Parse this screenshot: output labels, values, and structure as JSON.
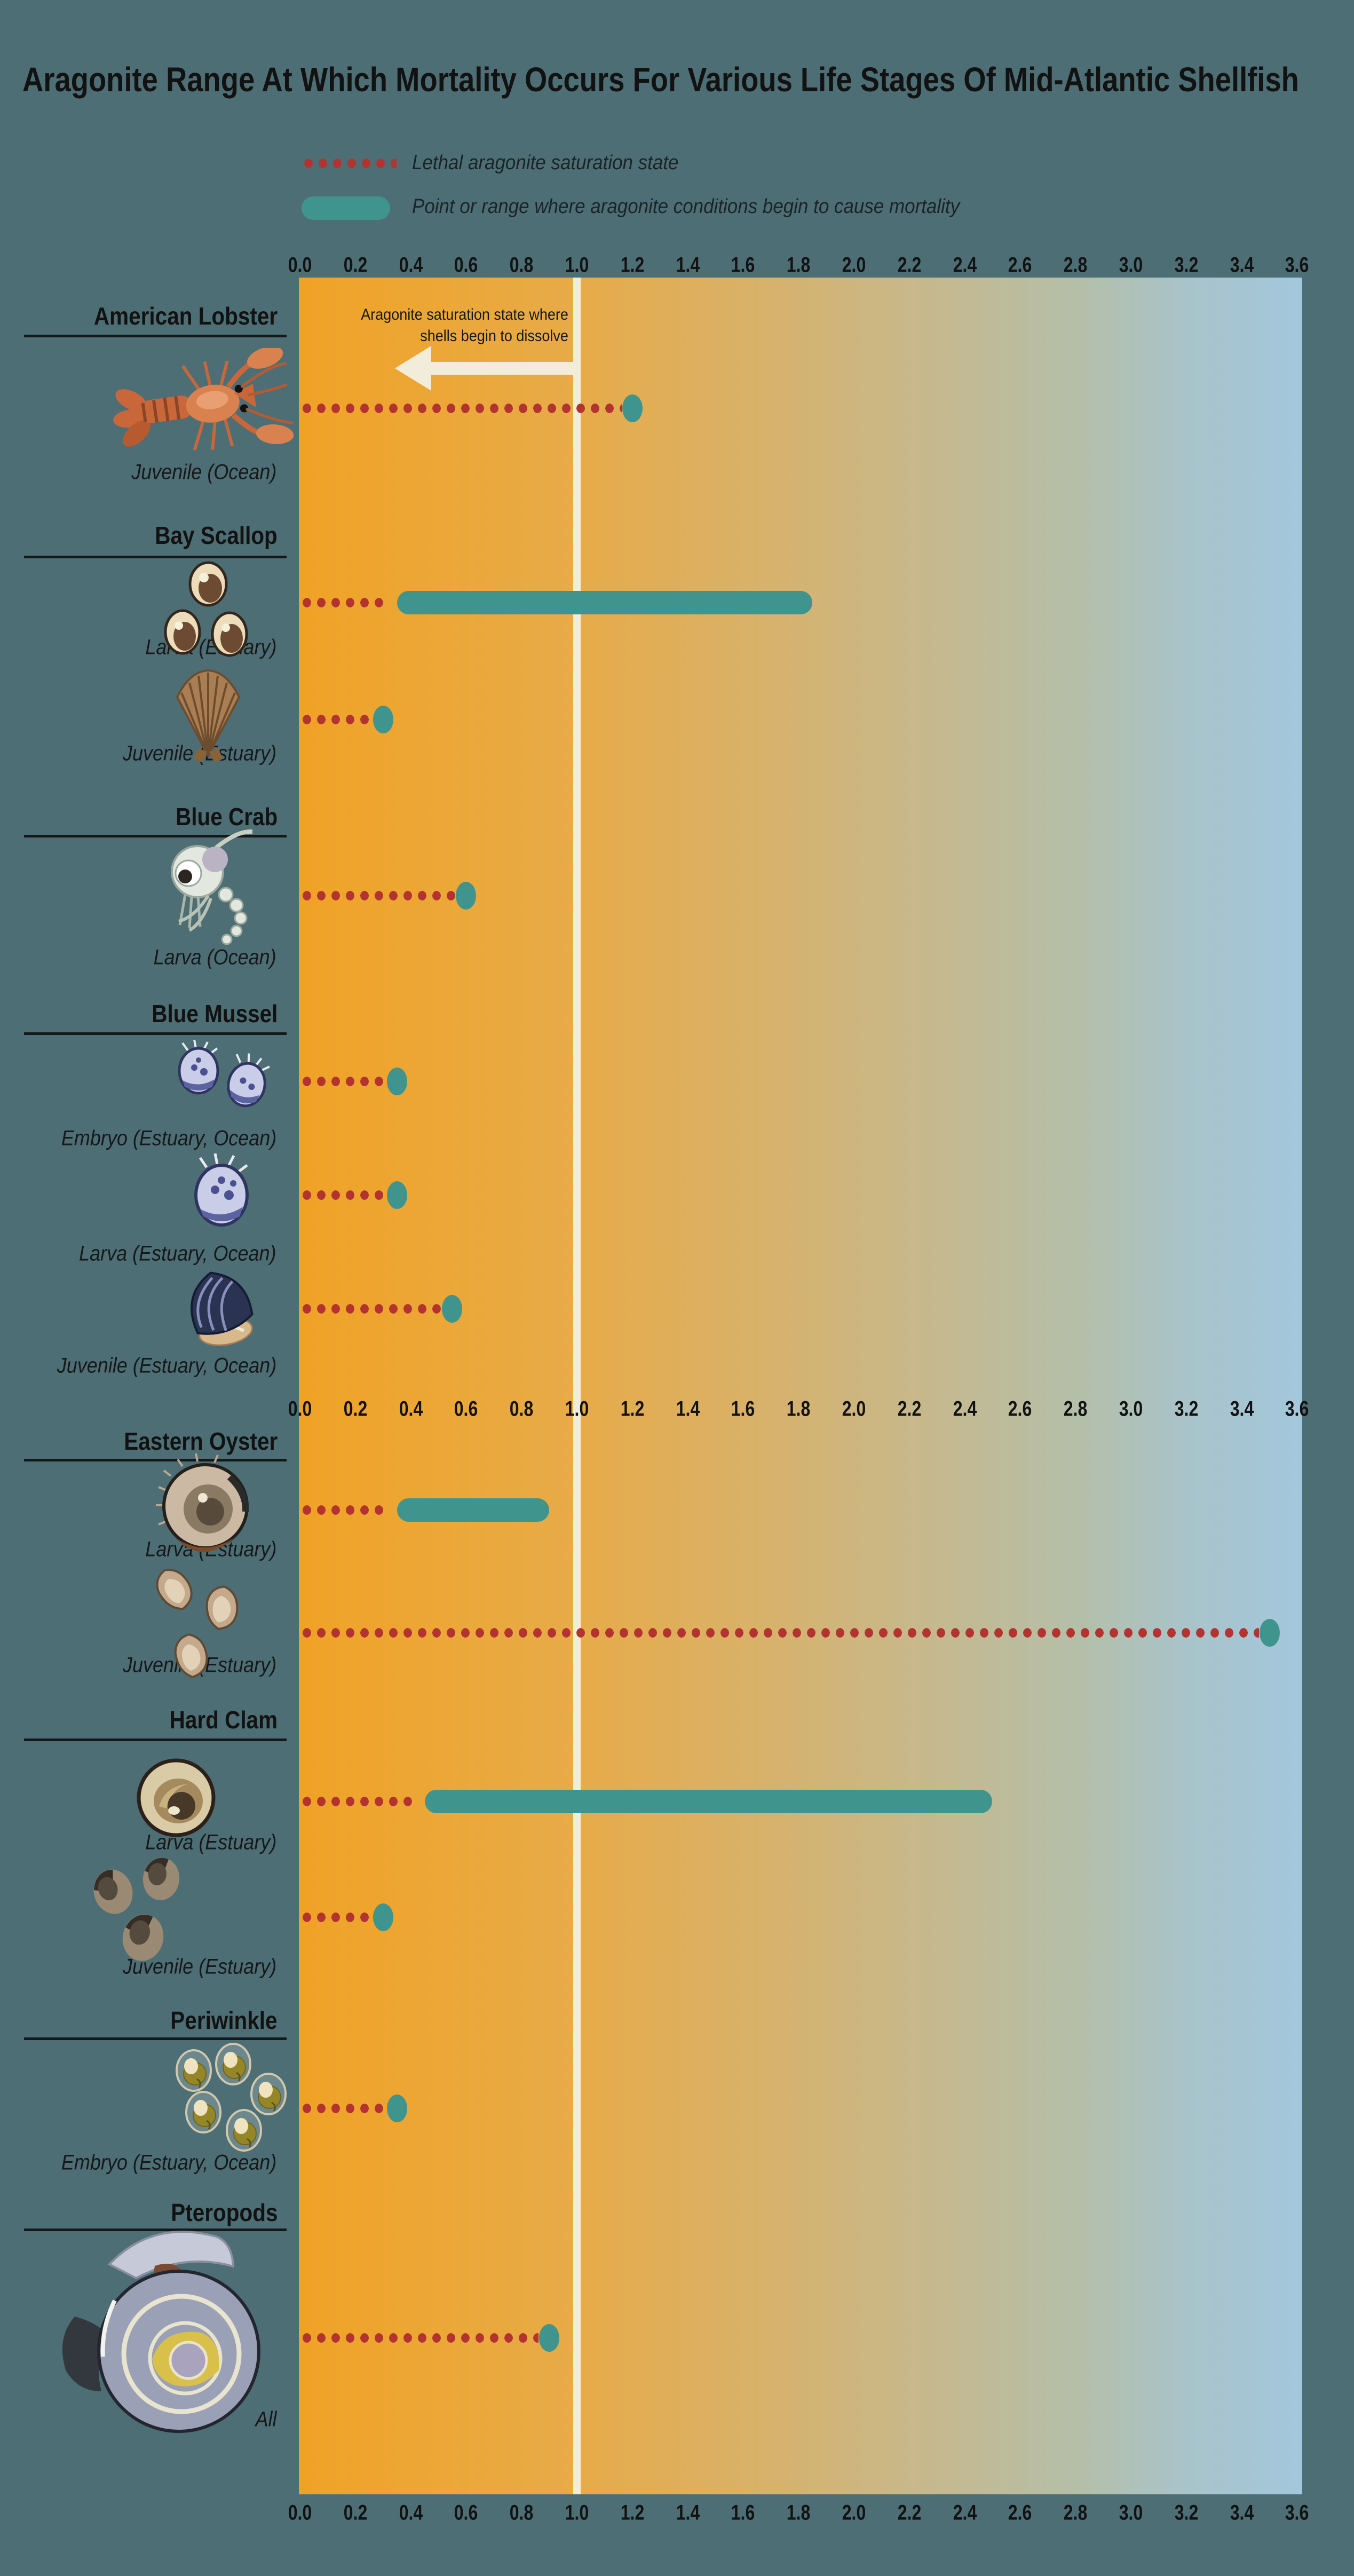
{
  "page": {
    "title": "Aragonite Range At Which Mortality Occurs For Various Life Stages Of Mid-Atlantic Shellfish"
  },
  "legend": {
    "lethal": {
      "label": "Lethal aragonite saturation state",
      "swatch": "red-dotted-line"
    },
    "mortality": {
      "label": "Point or range where aragonite conditions begin to cause mortality",
      "swatch": "teal-rounded-bar"
    }
  },
  "annotation": {
    "line1": "Aragonite saturation state where",
    "line2": "shells begin to dissolve",
    "arrow_direction": "left",
    "at_value": 1.0
  },
  "colors": {
    "background": "#4d6e74",
    "lethal_line": "#b23330",
    "mortality": "#3f948e",
    "reference_line": "#f2edda",
    "text": "#121212",
    "gradient_left": "#f0a226",
    "gradient_right": "#a3c7dc"
  },
  "chart_data": {
    "type": "dot-range",
    "title": "Aragonite Range At Which Mortality Occurs For Various Life Stages Of Mid-Atlantic Shellfish",
    "x_axis": {
      "min": 0.0,
      "max": 3.6,
      "step": 0.2,
      "reference_line_x": 1.0,
      "repeats": [
        "top",
        "middle",
        "bottom"
      ],
      "ticks": [
        "0.0",
        "0.2",
        "0.4",
        "0.6",
        "0.8",
        "1.0",
        "1.2",
        "1.4",
        "1.6",
        "1.8",
        "2.0",
        "2.2",
        "2.4",
        "2.6",
        "2.8",
        "3.0",
        "3.2",
        "3.4",
        "3.6"
      ]
    },
    "groups": [
      {
        "species": "American Lobster",
        "stages": [
          {
            "label": "Juvenile (Ocean)",
            "icon": "american-lobster-illustration",
            "lethal_line_to": 1.2,
            "mortality_point": 1.2
          }
        ]
      },
      {
        "species": "Bay Scallop",
        "stages": [
          {
            "label": "Larva (Estuary)",
            "icon": "bay-scallop-larvae-illustration",
            "lethal_line_to": 0.35,
            "mortality_range": [
              0.35,
              1.85
            ]
          },
          {
            "label": "Juvenile (Estuary)",
            "icon": "bay-scallop-shell-illustration",
            "lethal_line_to": 0.3,
            "mortality_point": 0.3
          }
        ]
      },
      {
        "species": "Blue Crab",
        "stages": [
          {
            "label": "Larva (Ocean)",
            "icon": "blue-crab-larva-illustration",
            "lethal_line_to": 0.6,
            "mortality_point": 0.6
          }
        ]
      },
      {
        "species": "Blue Mussel",
        "stages": [
          {
            "label": "Embryo (Estuary, Ocean)",
            "icon": "blue-mussel-embryos-illustration",
            "lethal_line_to": 0.35,
            "mortality_point": 0.35
          },
          {
            "label": "Larva (Estuary, Ocean)",
            "icon": "blue-mussel-larva-illustration",
            "lethal_line_to": 0.35,
            "mortality_point": 0.35
          },
          {
            "label": "Juvenile (Estuary, Ocean)",
            "icon": "blue-mussel-juvenile-illustration",
            "lethal_line_to": 0.55,
            "mortality_point": 0.55
          }
        ]
      },
      {
        "species": "Eastern Oyster",
        "stages": [
          {
            "label": "Larva (Estuary)",
            "icon": "eastern-oyster-larva-illustration",
            "lethal_line_to": 0.35,
            "mortality_range": [
              0.35,
              0.9
            ]
          },
          {
            "label": "Juvenile (Estuary)",
            "icon": "eastern-oyster-juveniles-illustration",
            "lethal_line_to": 3.5,
            "mortality_point": 3.5
          }
        ]
      },
      {
        "species": "Hard Clam",
        "stages": [
          {
            "label": "Larva (Estuary)",
            "icon": "hard-clam-larva-illustration",
            "lethal_line_to": 0.45,
            "mortality_range": [
              0.45,
              2.5
            ]
          },
          {
            "label": "Juvenile (Estuary)",
            "icon": "hard-clam-juveniles-illustration",
            "lethal_line_to": 0.3,
            "mortality_point": 0.3
          }
        ]
      },
      {
        "species": "Periwinkle",
        "stages": [
          {
            "label": "Embryo (Estuary, Ocean)",
            "icon": "periwinkle-embryos-illustration",
            "lethal_line_to": 0.35,
            "mortality_point": 0.35
          }
        ]
      },
      {
        "species": "Pteropods",
        "stages": [
          {
            "label": "All",
            "icon": "pteropod-illustration",
            "lethal_line_to": 0.9,
            "mortality_point": 0.9
          }
        ]
      }
    ]
  }
}
